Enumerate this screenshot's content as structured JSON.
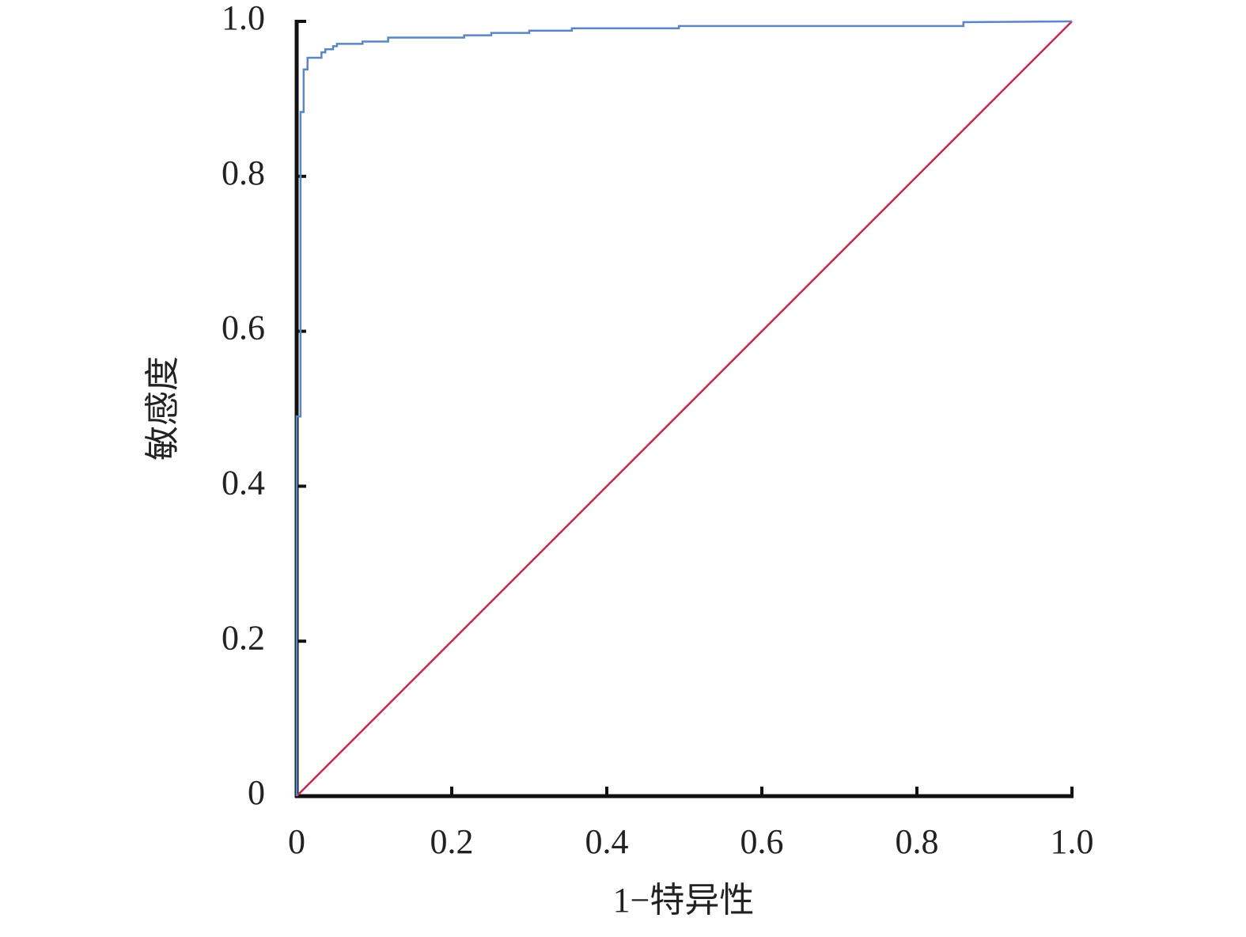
{
  "chart_data": {
    "type": "line",
    "xlabel": "1−特异性",
    "ylabel": "敏感度",
    "xlim": [
      0,
      1
    ],
    "ylim": [
      0,
      1
    ],
    "xticks": [
      0,
      0.2,
      0.4,
      0.6,
      0.8,
      {
        "value": 1,
        "label": "1.0"
      }
    ],
    "yticks": [
      0,
      0.2,
      0.4,
      0.6,
      0.8,
      {
        "value": 1,
        "label": "1.0"
      }
    ],
    "grid": false,
    "series": [
      {
        "color": "#5b86c5",
        "x": [
          0,
          0,
          0.005,
          0.005,
          0.009,
          0.009,
          0.014,
          0.014,
          0.032,
          0.032,
          0.037,
          0.037,
          0.047,
          0.047,
          0.052,
          0.052,
          0.085,
          0.085,
          0.118,
          0.118,
          0.216,
          0.216,
          0.251,
          0.251,
          0.3,
          0.3,
          0.355,
          0.355,
          0.493,
          0.493,
          0.86,
          0.86,
          1
        ],
        "values": [
          0,
          0.49,
          0.49,
          0.883,
          0.883,
          0.938,
          0.938,
          0.953,
          0.953,
          0.96,
          0.96,
          0.964,
          0.964,
          0.968,
          0.968,
          0.971,
          0.971,
          0.974,
          0.974,
          0.979,
          0.979,
          0.982,
          0.982,
          0.985,
          0.985,
          0.988,
          0.988,
          0.991,
          0.991,
          0.994,
          0.994,
          0.999,
          1
        ]
      },
      {
        "color": "#c8264a",
        "x": [
          0,
          1
        ],
        "values": [
          0,
          1
        ]
      }
    ]
  }
}
